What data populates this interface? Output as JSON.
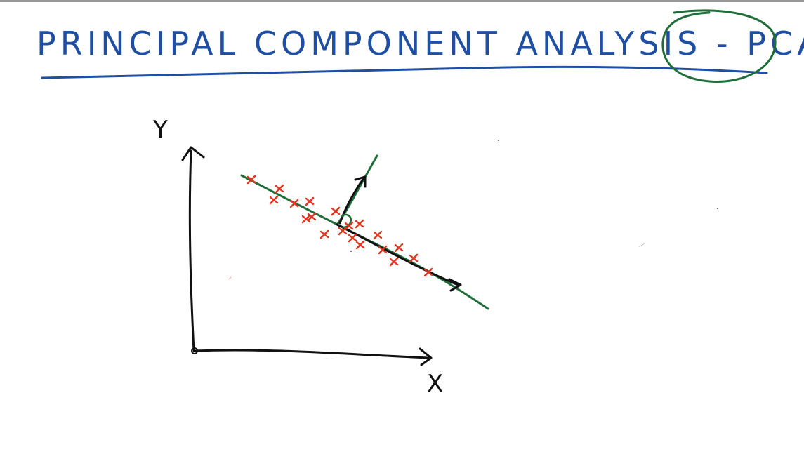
{
  "title": {
    "text": "PRINCIPAL COMPONENT ANALYSIS - PCA",
    "circled_word": "PCA",
    "color": "#1f4fa3",
    "circle_color": "#1f6e3a"
  },
  "axes": {
    "x_label": "X",
    "y_label": "Y",
    "color": "#111111"
  },
  "colors": {
    "points": "#e8321e",
    "principal_line": "#1f6e3a",
    "vectors": "#111111"
  },
  "points_count": 20
}
